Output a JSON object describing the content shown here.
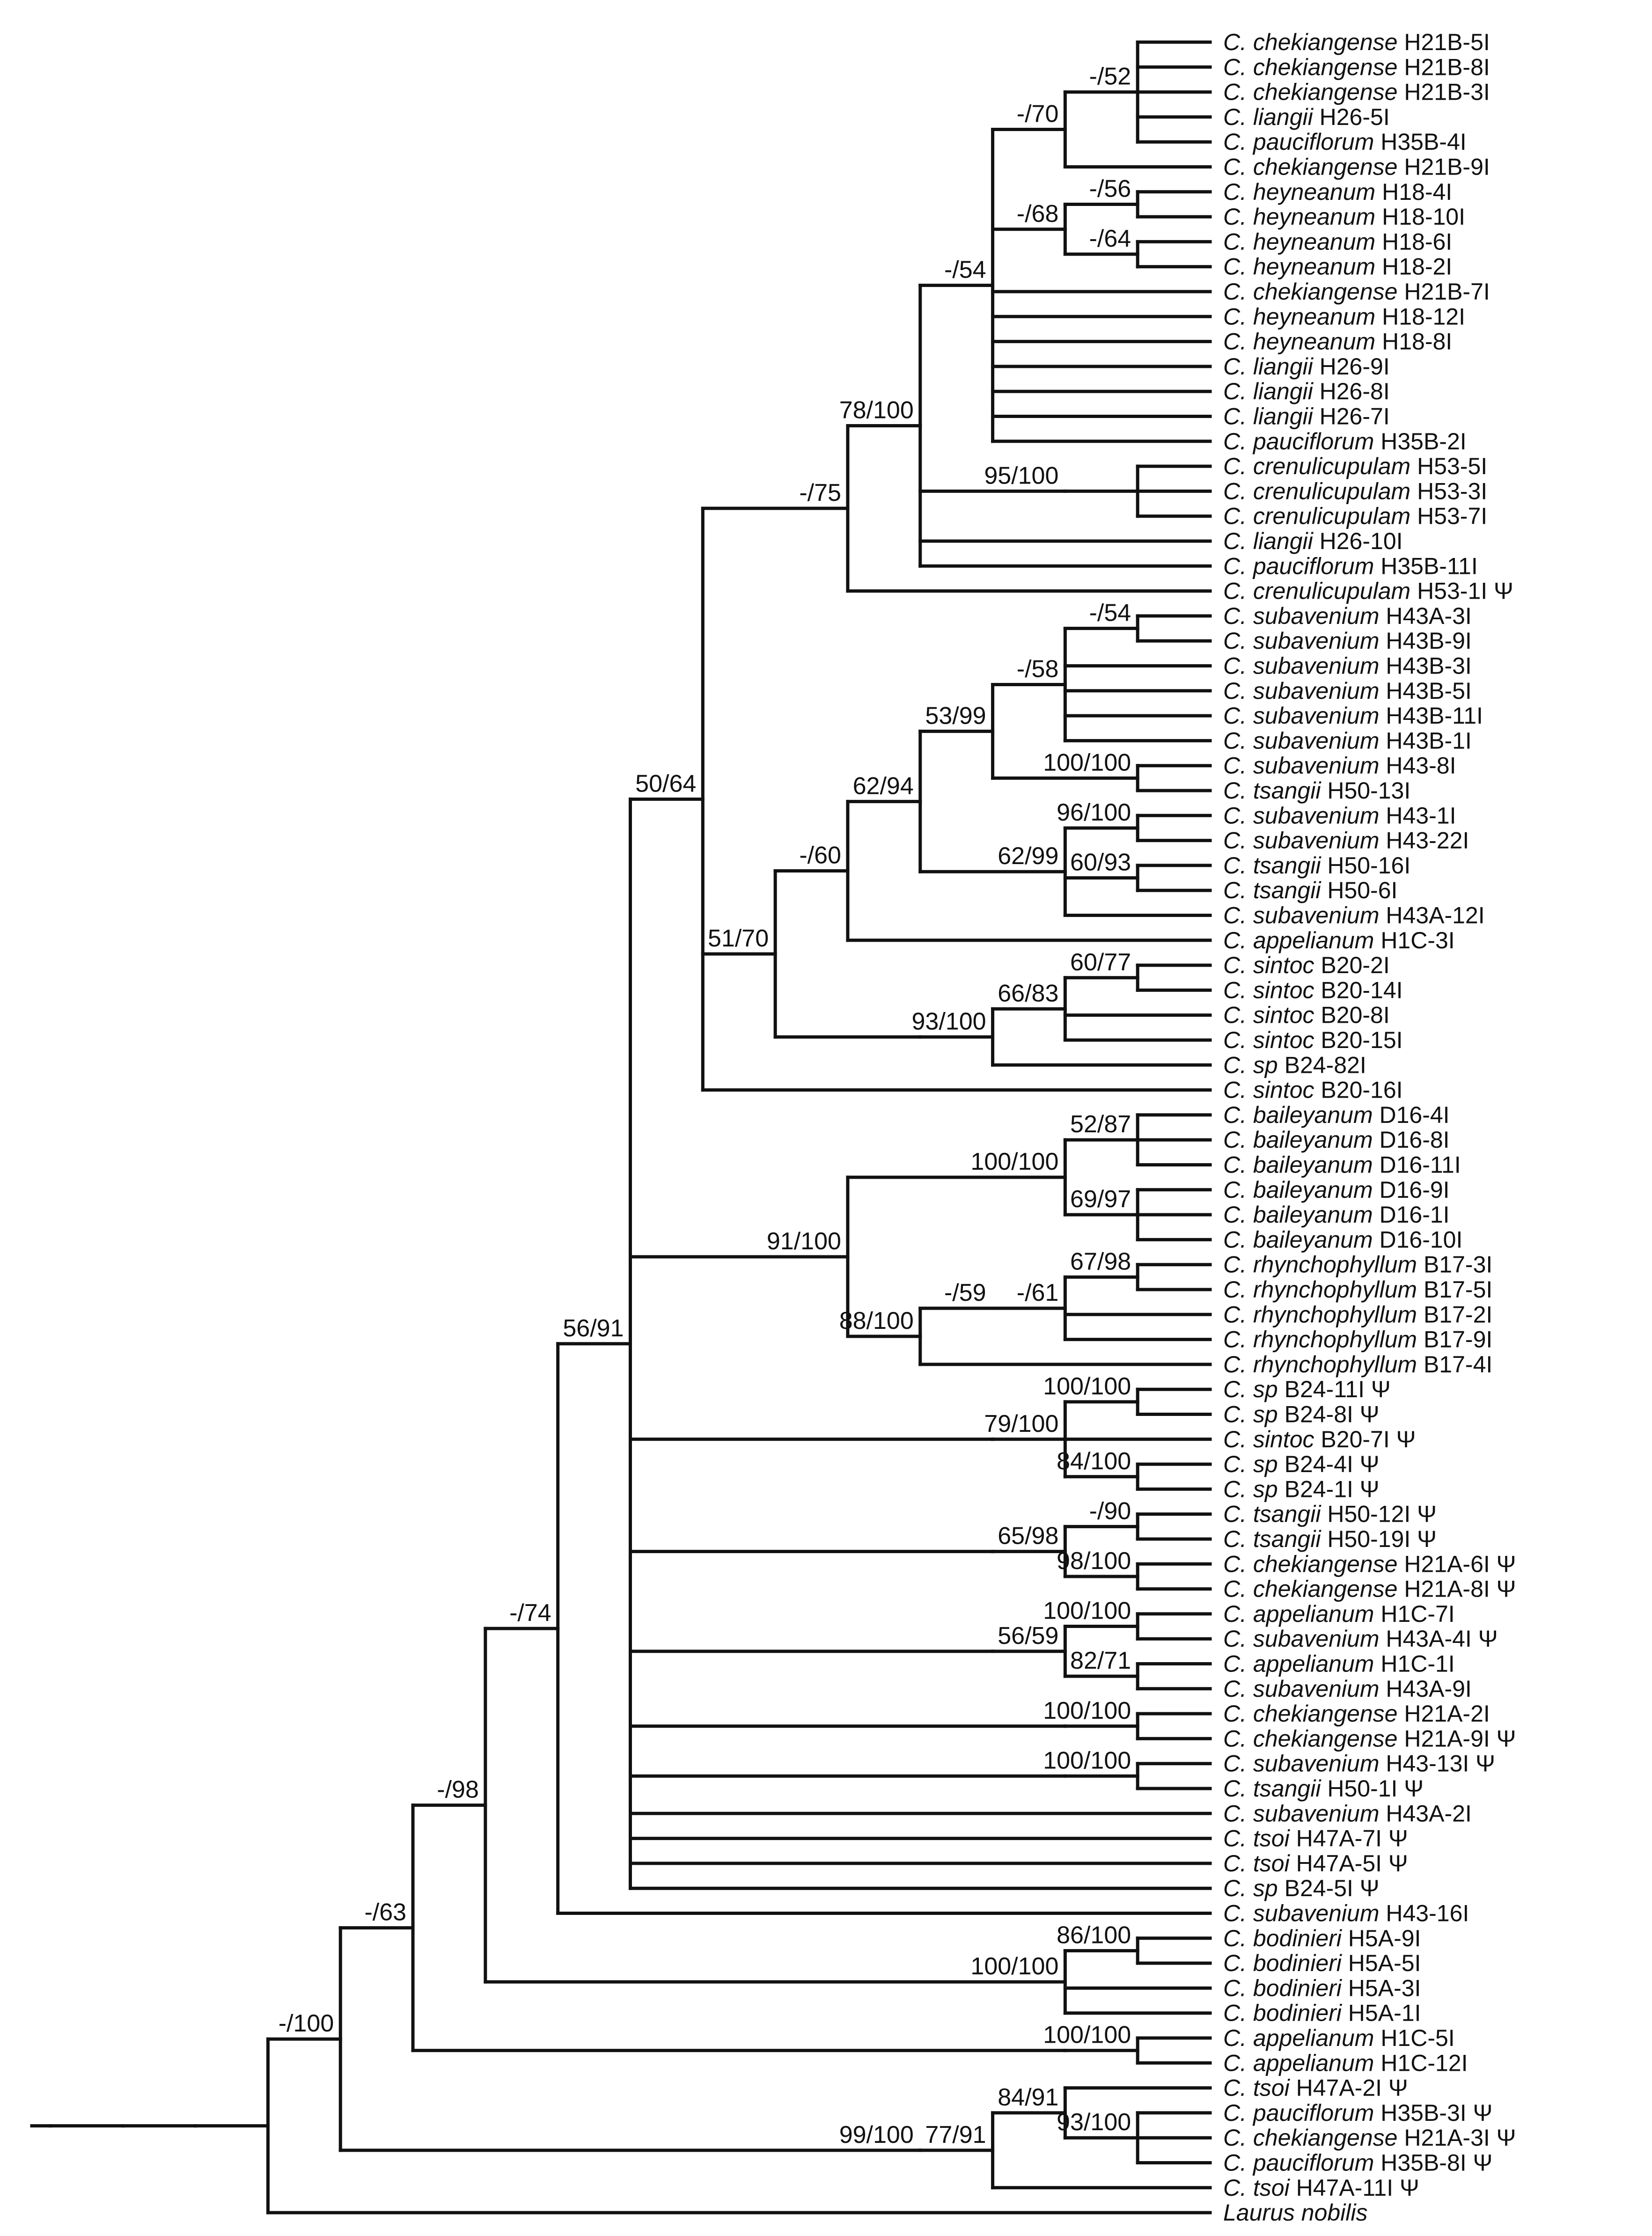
{
  "tree": {
    "genus_abbrev": "C.",
    "taxa": [
      {
        "species": "chekiangense",
        "code": "H21B-5I",
        "psi": false
      },
      {
        "species": "chekiangense",
        "code": "H21B-8I",
        "psi": false
      },
      {
        "species": "chekiangense",
        "code": "H21B-3I",
        "psi": false
      },
      {
        "species": "liangii",
        "code": "H26-5I",
        "psi": false
      },
      {
        "species": "pauciflorum",
        "code": "H35B-4I",
        "psi": false
      },
      {
        "species": "chekiangense",
        "code": "H21B-9I",
        "psi": false
      },
      {
        "species": "heyneanum",
        "code": "H18-4I",
        "psi": false
      },
      {
        "species": "heyneanum",
        "code": "H18-10I",
        "psi": false
      },
      {
        "species": "heyneanum",
        "code": "H18-6I",
        "psi": false
      },
      {
        "species": "heyneanum",
        "code": "H18-2I",
        "psi": false
      },
      {
        "species": "chekiangense",
        "code": "H21B-7I",
        "psi": false
      },
      {
        "species": "heyneanum",
        "code": "H18-12I",
        "psi": false
      },
      {
        "species": "heyneanum",
        "code": "H18-8I",
        "psi": false
      },
      {
        "species": "liangii",
        "code": "H26-9I",
        "psi": false
      },
      {
        "species": "liangii",
        "code": "H26-8I",
        "psi": false
      },
      {
        "species": "liangii",
        "code": "H26-7I",
        "psi": false
      },
      {
        "species": "pauciflorum",
        "code": "H35B-2I",
        "psi": false
      },
      {
        "species": "crenulicupulam",
        "code": "H53-5I",
        "psi": false
      },
      {
        "species": "crenulicupulam",
        "code": "H53-3I",
        "psi": false
      },
      {
        "species": "crenulicupulam",
        "code": "H53-7I",
        "psi": false
      },
      {
        "species": "liangii",
        "code": "H26-10I",
        "psi": false
      },
      {
        "species": "pauciflorum",
        "code": "H35B-11I",
        "psi": false
      },
      {
        "species": "crenulicupulam",
        "code": "H53-1I",
        "psi": true
      },
      {
        "species": "subavenium",
        "code": "H43A-3I",
        "psi": false
      },
      {
        "species": "subavenium",
        "code": "H43B-9I",
        "psi": false
      },
      {
        "species": "subavenium",
        "code": "H43B-3I",
        "psi": false
      },
      {
        "species": "subavenium",
        "code": "H43B-5I",
        "psi": false
      },
      {
        "species": "subavenium",
        "code": "H43B-11I",
        "psi": false
      },
      {
        "species": "subavenium",
        "code": "H43B-1I",
        "psi": false
      },
      {
        "species": "subavenium",
        "code": "H43-8I",
        "psi": false
      },
      {
        "species": "tsangii",
        "code": "H50-13I",
        "psi": false
      },
      {
        "species": "subavenium",
        "code": "H43-1I",
        "psi": false
      },
      {
        "species": "subavenium",
        "code": "H43-22I",
        "psi": false
      },
      {
        "species": "tsangii",
        "code": "H50-16I",
        "psi": false
      },
      {
        "species": "tsangii",
        "code": "H50-6I",
        "psi": false
      },
      {
        "species": "subavenium",
        "code": "H43A-12I",
        "psi": false
      },
      {
        "species": "appelianum",
        "code": "H1C-3I",
        "psi": false
      },
      {
        "species": "sintoc",
        "code": "B20-2I",
        "psi": false
      },
      {
        "species": "sintoc",
        "code": "B20-14I",
        "psi": false
      },
      {
        "species": "sintoc",
        "code": "B20-8I",
        "psi": false
      },
      {
        "species": "sintoc",
        "code": "B20-15I",
        "psi": false
      },
      {
        "species": "sp",
        "code": "B24-82I",
        "psi": false
      },
      {
        "species": "sintoc",
        "code": "B20-16I",
        "psi": false
      },
      {
        "species": "baileyanum",
        "code": "D16-4I",
        "psi": false
      },
      {
        "species": "baileyanum",
        "code": "D16-8I",
        "psi": false
      },
      {
        "species": "baileyanum",
        "code": "D16-11I",
        "psi": false
      },
      {
        "species": "baileyanum",
        "code": "D16-9I",
        "psi": false
      },
      {
        "species": "baileyanum",
        "code": "D16-1I",
        "psi": false
      },
      {
        "species": "baileyanum",
        "code": "D16-10I",
        "psi": false
      },
      {
        "species": "rhynchophyllum",
        "code": "B17-3I",
        "psi": false
      },
      {
        "species": "rhynchophyllum",
        "code": "B17-5I",
        "psi": false
      },
      {
        "species": "rhynchophyllum",
        "code": "B17-2I",
        "psi": false
      },
      {
        "species": "rhynchophyllum",
        "code": "B17-9I",
        "psi": false
      },
      {
        "species": "rhynchophyllum",
        "code": "B17-4I",
        "psi": false
      },
      {
        "species": "sp",
        "code": "B24-11I",
        "psi": true
      },
      {
        "species": "sp",
        "code": "B24-8I",
        "psi": true
      },
      {
        "species": "sintoc",
        "code": "B20-7I",
        "psi": true
      },
      {
        "species": "sp",
        "code": "B24-4I",
        "psi": true
      },
      {
        "species": "sp",
        "code": "B24-1I",
        "psi": true
      },
      {
        "species": "tsangii",
        "code": "H50-12I",
        "psi": true
      },
      {
        "species": "tsangii",
        "code": "H50-19I",
        "psi": true
      },
      {
        "species": "chekiangense",
        "code": "H21A-6I",
        "psi": true
      },
      {
        "species": "chekiangense",
        "code": "H21A-8I",
        "psi": true
      },
      {
        "species": "appelianum",
        "code": "H1C-7I",
        "psi": false
      },
      {
        "species": "subavenium",
        "code": "H43A-4I",
        "psi": true
      },
      {
        "species": "appelianum",
        "code": "H1C-1I",
        "psi": false
      },
      {
        "species": "subavenium",
        "code": "H43A-9I",
        "psi": false
      },
      {
        "species": "chekiangense",
        "code": "H21A-2I",
        "psi": false
      },
      {
        "species": "chekiangense",
        "code": "H21A-9I",
        "psi": true
      },
      {
        "species": "subavenium",
        "code": "H43-13I",
        "psi": true
      },
      {
        "species": "tsangii",
        "code": "H50-1I",
        "psi": true
      },
      {
        "species": "subavenium",
        "code": "H43A-2I",
        "psi": false
      },
      {
        "species": "tsoi",
        "code": "H47A-7I",
        "psi": true
      },
      {
        "species": "tsoi",
        "code": "H47A-5I",
        "psi": true
      },
      {
        "species": "sp",
        "code": "B24-5I",
        "psi": true
      },
      {
        "species": "subavenium",
        "code": "H43-16I",
        "psi": false
      },
      {
        "species": "bodinieri",
        "code": "H5A-9I",
        "psi": false
      },
      {
        "species": "bodinieri",
        "code": "H5A-5I",
        "psi": false
      },
      {
        "species": "bodinieri",
        "code": "H5A-3I",
        "psi": false
      },
      {
        "species": "bodinieri",
        "code": "H5A-1I",
        "psi": false
      },
      {
        "species": "appelianum",
        "code": "H1C-5I",
        "psi": false
      },
      {
        "species": "appelianum",
        "code": "H1C-12I",
        "psi": false
      },
      {
        "species": "tsoi",
        "code": "H47A-2I",
        "psi": true
      },
      {
        "species": "pauciflorum",
        "code": "H35B-3I",
        "psi": true
      },
      {
        "species": "chekiangense",
        "code": "H21A-3I",
        "psi": true
      },
      {
        "species": "pauciflorum",
        "code": "H35B-8I",
        "psi": true
      },
      {
        "species": "tsoi",
        "code": "H47A-11I",
        "psi": true
      }
    ],
    "outgroup": "Laurus nobilis",
    "psi_symbol": "Ψ",
    "newick": "(((((((((((((((T0,T1,T2,T3,T4)-/52,T5)-/70,((T6,T7)-/56,(T8,T9)-/64)-/68,T10,T11,T12,T13,T14,T15,T16)-/54,((T17,T18,T19))95/100,T20,T21)78/100,T22)-/75,((((((T23,T24)-/54,T25,T26,T27,T28)-/58,(T29,T30)100/100)53/99,((T31,T32)96/100,(T33,T34)60/93,T35)62/99)62/94,T36)-/60,((((T37,T38)60/77,T39,T40)66/83,T41)93/100))51/70,T42)50/64,(((T43,T44,T45)52/87,(T46,T47,T48)69/97)100/100,((((T49,T50)67/98,T51,T52)-/61)-/59,T53)88/100)91/100,(((T54,T55)100/100,T56,(T57,T58)84/100)79/100),(((T59,T60)-/90,(T61,T62)98/100)65/98),(((T63,T64)100/100,(T65,T66)82/71)56/59),((T67,T68)100/100),((T69,T70)100/100),T71,T72,T73,T74)56/91,T75)-/74,((T76,T77)86/100,T78,T79)100/100)-/98,((T80,T81)100/100))-/63,(((T82,(T83,T84,T85)93/100)84/91,T86)77/91)99/100)-/100,OUT);"
  }
}
